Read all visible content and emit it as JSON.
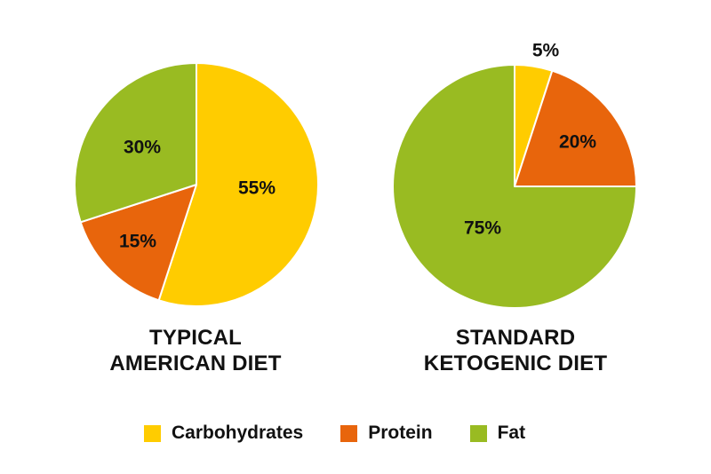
{
  "chart_data": [
    {
      "type": "pie",
      "title_lines": [
        "TYPICAL",
        "AMERICAN DIET"
      ],
      "slices": [
        {
          "category": "Carbohydrates",
          "value": 55,
          "label": "55%"
        },
        {
          "category": "Protein",
          "value": 15,
          "label": "15%"
        },
        {
          "category": "Fat",
          "value": 30,
          "label": "30%"
        }
      ]
    },
    {
      "type": "pie",
      "title_lines": [
        "STANDARD",
        "KETOGENIC DIET"
      ],
      "slices": [
        {
          "category": "Carbohydrates",
          "value": 5,
          "label": "5%"
        },
        {
          "category": "Protein",
          "value": 20,
          "label": "20%"
        },
        {
          "category": "Fat",
          "value": 75,
          "label": "75%"
        }
      ]
    }
  ],
  "legend": [
    {
      "label": "Carbohydrates",
      "color": "#FFCC00"
    },
    {
      "label": "Protein",
      "color": "#E8650C"
    },
    {
      "label": "Fat",
      "color": "#99BB22"
    }
  ],
  "legend_placement": "bottom-center",
  "slice_order": "clockwise from 12 o'clock"
}
